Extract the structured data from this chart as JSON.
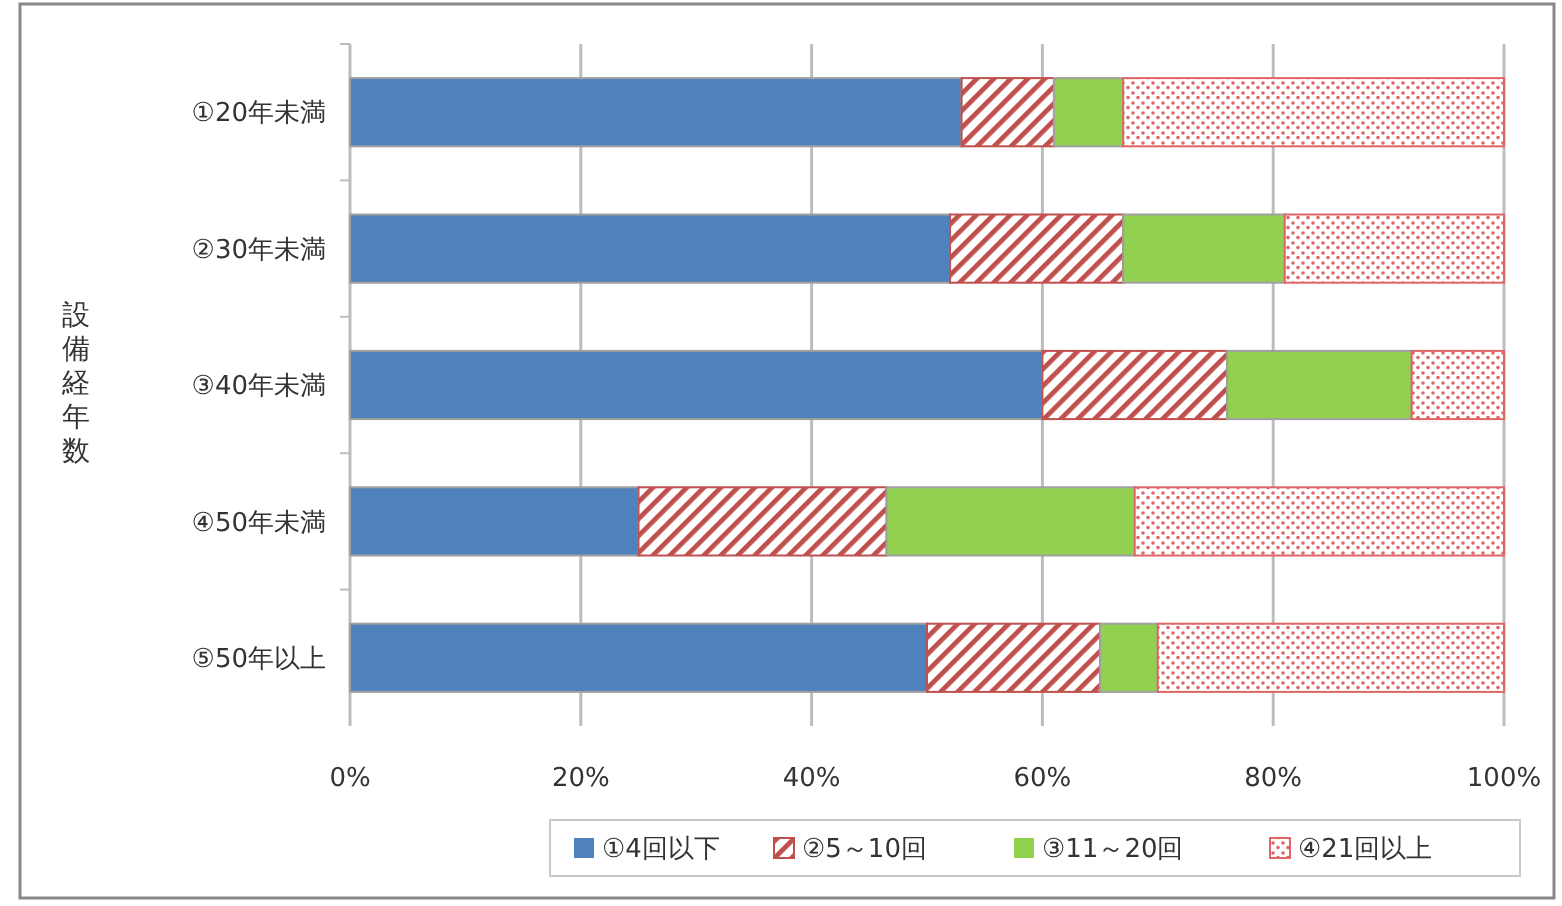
{
  "chart_data": {
    "type": "bar",
    "orientation": "horizontal",
    "stacked": true,
    "ylabel": "設備経年数",
    "categories": [
      "①20年未満",
      "②30年未満",
      "③40年未満",
      "④50年未満",
      "⑤50年以上"
    ],
    "series": [
      {
        "name": "①4回以下",
        "color": "#4f81bd",
        "values": [
          53,
          52,
          60,
          25,
          50
        ]
      },
      {
        "name": "②5～10回",
        "color": "#c0504d",
        "values": [
          8,
          15,
          16,
          21.5,
          15
        ]
      },
      {
        "name": "③11～20回",
        "color": "#92d050",
        "values": [
          6,
          14,
          16,
          21.5,
          5
        ]
      },
      {
        "name": "④21回以上",
        "color": "#e06666",
        "values": [
          33,
          19,
          8,
          32,
          30
        ]
      }
    ],
    "xlim": [
      0,
      100
    ],
    "xticks": [
      {
        "value": 0,
        "label": "0%"
      },
      {
        "value": 20,
        "label": "20%"
      },
      {
        "value": 40,
        "label": "40%"
      },
      {
        "value": 60,
        "label": "60%"
      },
      {
        "value": 80,
        "label": "80%"
      },
      {
        "value": 100,
        "label": "100%"
      }
    ],
    "grid": "x",
    "legend": "bottom"
  }
}
